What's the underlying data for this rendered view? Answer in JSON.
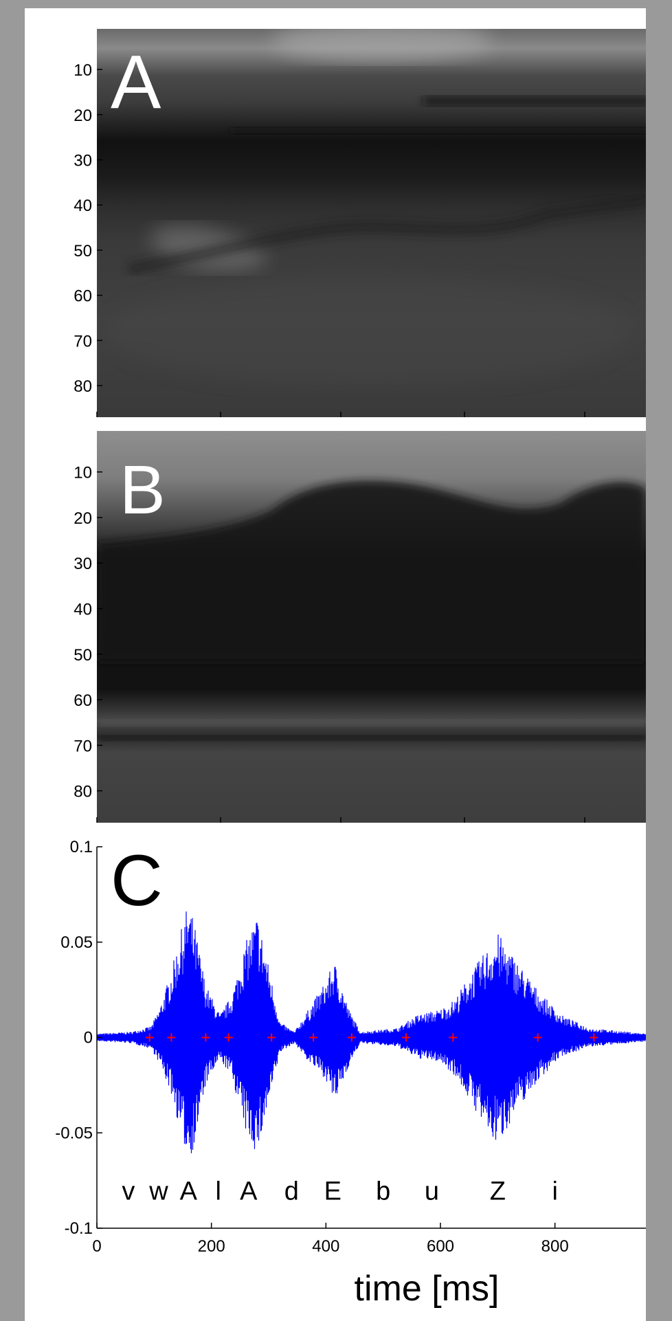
{
  "panels": [
    {
      "label": "A",
      "type": "heatmap",
      "y_ticks": [
        "10",
        "20",
        "30",
        "40",
        "50",
        "60",
        "70",
        "80"
      ],
      "y_range": [
        1,
        87
      ]
    },
    {
      "label": "B",
      "type": "heatmap",
      "y_ticks": [
        "10",
        "20",
        "30",
        "40",
        "50",
        "60",
        "70",
        "80"
      ],
      "y_range": [
        1,
        87
      ]
    }
  ],
  "chart_data": {
    "type": "line",
    "panel_label": "C",
    "xlabel": "time [ms]",
    "ylabel": "",
    "xlim": [
      0,
      960
    ],
    "ylim": [
      -0.1,
      0.1
    ],
    "x_ticks": [
      "0",
      "200",
      "400",
      "600",
      "800"
    ],
    "x_tick_values": [
      0,
      200,
      400,
      600,
      800
    ],
    "y_ticks": [
      "0.1",
      "0.05",
      "0",
      "-0.05",
      "-0.1"
    ],
    "y_tick_values": [
      0.1,
      0.05,
      0,
      -0.05,
      -0.1
    ],
    "series_color": "#0000ff",
    "marker_color": "#ff0000",
    "phoneme_boundaries_ms": [
      92,
      130,
      190,
      230,
      305,
      378,
      445,
      540,
      622,
      770,
      868
    ],
    "phonemes": [
      {
        "label": "v",
        "x": 55
      },
      {
        "label": "w",
        "x": 108
      },
      {
        "label": "A",
        "x": 160
      },
      {
        "label": "l",
        "x": 212
      },
      {
        "label": "A",
        "x": 265
      },
      {
        "label": "d",
        "x": 340
      },
      {
        "label": "E",
        "x": 412
      },
      {
        "label": "b",
        "x": 500
      },
      {
        "label": "u",
        "x": 585
      },
      {
        "label": "Z",
        "x": 700
      },
      {
        "label": "i",
        "x": 800
      }
    ],
    "envelope": [
      {
        "x": 0,
        "pos": 0.002,
        "neg": -0.002
      },
      {
        "x": 60,
        "pos": 0.003,
        "neg": -0.003
      },
      {
        "x": 95,
        "pos": 0.006,
        "neg": -0.006
      },
      {
        "x": 110,
        "pos": 0.016,
        "neg": -0.014
      },
      {
        "x": 130,
        "pos": 0.035,
        "neg": -0.03
      },
      {
        "x": 150,
        "pos": 0.06,
        "neg": -0.055
      },
      {
        "x": 160,
        "pos": 0.072,
        "neg": -0.064
      },
      {
        "x": 170,
        "pos": 0.06,
        "neg": -0.058
      },
      {
        "x": 190,
        "pos": 0.028,
        "neg": -0.025
      },
      {
        "x": 215,
        "pos": 0.012,
        "neg": -0.012
      },
      {
        "x": 235,
        "pos": 0.022,
        "neg": -0.02
      },
      {
        "x": 260,
        "pos": 0.05,
        "neg": -0.05
      },
      {
        "x": 280,
        "pos": 0.065,
        "neg": -0.062
      },
      {
        "x": 295,
        "pos": 0.045,
        "neg": -0.042
      },
      {
        "x": 320,
        "pos": 0.008,
        "neg": -0.008
      },
      {
        "x": 345,
        "pos": 0.003,
        "neg": -0.003
      },
      {
        "x": 370,
        "pos": 0.015,
        "neg": -0.013
      },
      {
        "x": 400,
        "pos": 0.03,
        "neg": -0.022
      },
      {
        "x": 415,
        "pos": 0.04,
        "neg": -0.035
      },
      {
        "x": 440,
        "pos": 0.015,
        "neg": -0.015
      },
      {
        "x": 460,
        "pos": 0.003,
        "neg": -0.003
      },
      {
        "x": 525,
        "pos": 0.005,
        "neg": -0.005
      },
      {
        "x": 560,
        "pos": 0.012,
        "neg": -0.011
      },
      {
        "x": 600,
        "pos": 0.015,
        "neg": -0.013
      },
      {
        "x": 625,
        "pos": 0.02,
        "neg": -0.02
      },
      {
        "x": 655,
        "pos": 0.035,
        "neg": -0.035
      },
      {
        "x": 685,
        "pos": 0.048,
        "neg": -0.052
      },
      {
        "x": 700,
        "pos": 0.055,
        "neg": -0.057
      },
      {
        "x": 730,
        "pos": 0.042,
        "neg": -0.04
      },
      {
        "x": 770,
        "pos": 0.025,
        "neg": -0.023
      },
      {
        "x": 810,
        "pos": 0.012,
        "neg": -0.01
      },
      {
        "x": 860,
        "pos": 0.005,
        "neg": -0.005
      },
      {
        "x": 960,
        "pos": 0.002,
        "neg": -0.002
      }
    ]
  }
}
